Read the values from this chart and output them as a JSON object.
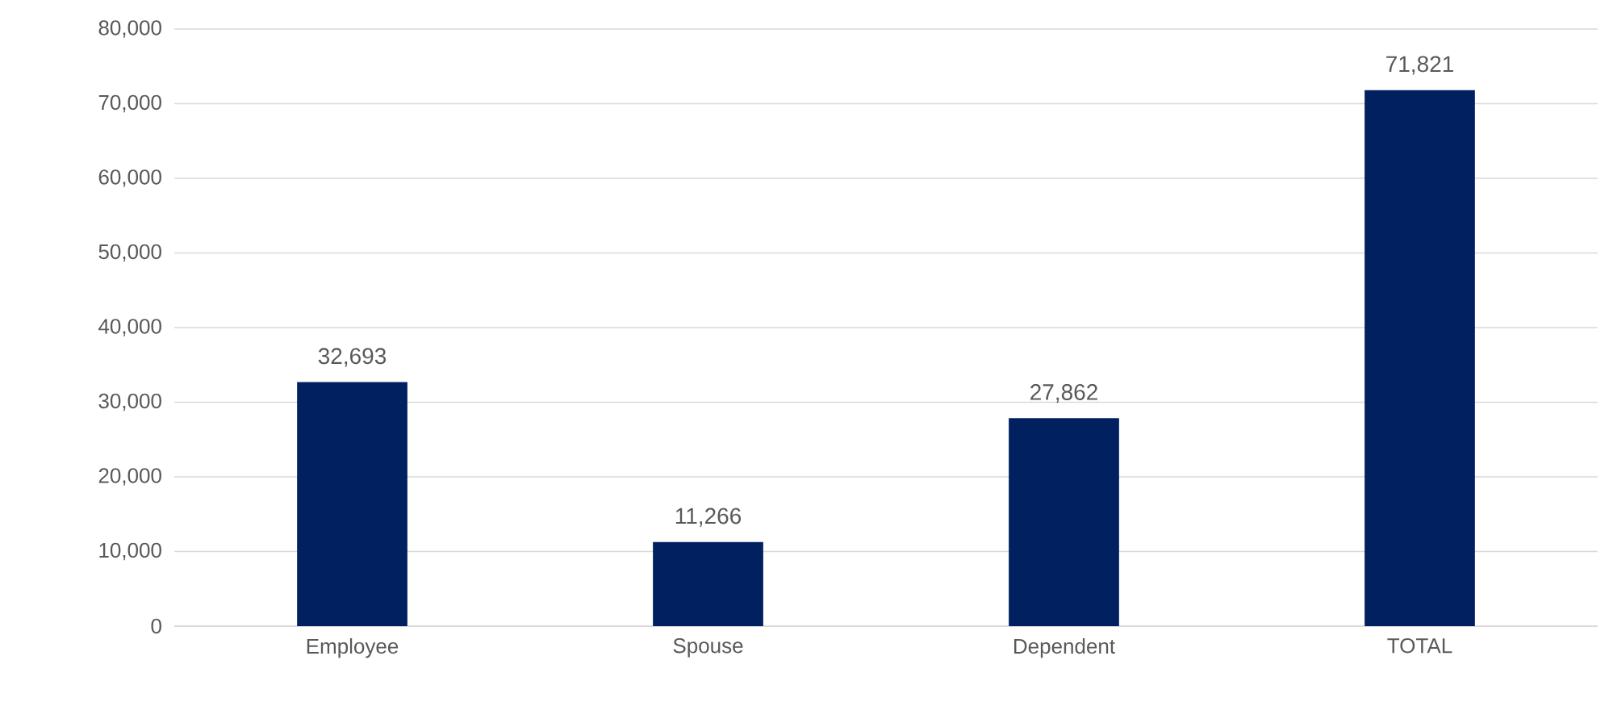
{
  "chart_data": {
    "type": "bar",
    "categories": [
      "Employee",
      "Spouse",
      "Dependent",
      "TOTAL"
    ],
    "values": [
      32693,
      11266,
      27862,
      71821
    ],
    "value_labels": [
      "32,693",
      "11,266",
      "27,862",
      "71,821"
    ],
    "color": "#002060",
    "ylim": [
      0,
      80000
    ],
    "yticks": [
      {
        "value": 0,
        "label": "0"
      },
      {
        "value": 10000,
        "label": "10,000"
      },
      {
        "value": 20000,
        "label": "20,000"
      },
      {
        "value": 30000,
        "label": "30,000"
      },
      {
        "value": 40000,
        "label": "40,000"
      },
      {
        "value": 50000,
        "label": "50,000"
      },
      {
        "value": 60000,
        "label": "60,000"
      },
      {
        "value": 70000,
        "label": "70,000"
      },
      {
        "value": 80000,
        "label": "80,000"
      }
    ],
    "grid": "y"
  }
}
